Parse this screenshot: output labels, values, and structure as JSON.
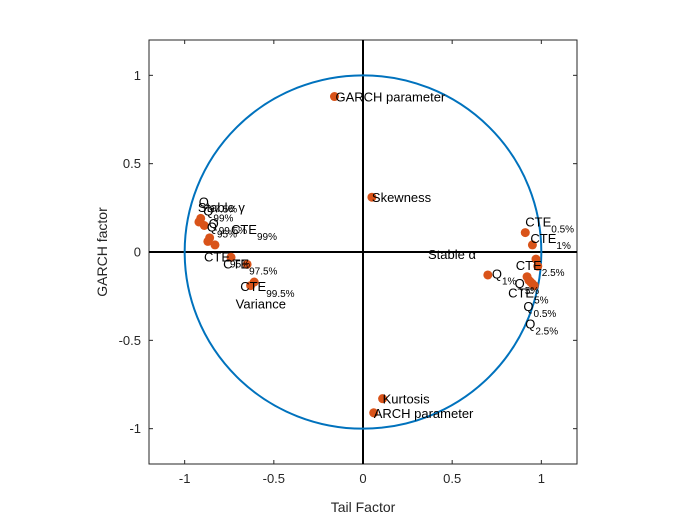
{
  "chart_data": {
    "type": "scatter",
    "title": "",
    "xlabel": "Tail Factor",
    "ylabel": "GARCH factor",
    "xlim": [
      -1.2,
      1.2
    ],
    "ylim": [
      -1.2,
      1.2
    ],
    "xticks": [
      -1,
      -0.5,
      0,
      0.5,
      1
    ],
    "yticks": [
      -1,
      -0.5,
      0,
      0.5,
      1
    ],
    "xtick_labels": [
      "-1",
      "-0.5",
      "0",
      "0.5",
      "1"
    ],
    "ytick_labels": [
      "-1",
      "-0.5",
      "0",
      "0.5",
      "1"
    ],
    "unit_circle": true,
    "zero_axes": true,
    "grid": false,
    "legend": "none",
    "colors": {
      "points": "#d95319",
      "circle": "#0072bd",
      "axes": "#000000",
      "frame": "#262626"
    },
    "points": [
      {
        "x": -0.16,
        "y": 0.88,
        "label": "GARCH parameter",
        "sub": ""
      },
      {
        "x": 0.05,
        "y": 0.31,
        "label": "Skewness",
        "sub": ""
      },
      {
        "x": 0.11,
        "y": -0.83,
        "label": "Kurtosis",
        "sub": ""
      },
      {
        "x": 0.06,
        "y": -0.91,
        "label": "ARCH parameter",
        "sub": ""
      },
      {
        "x": -0.91,
        "y": 0.19,
        "label": "Q",
        "sub": "97.5%"
      },
      {
        "x": -0.92,
        "y": 0.17,
        "label": "Stable γ",
        "sub": ""
      },
      {
        "x": -0.89,
        "y": 0.15,
        "label": "Q",
        "sub": "99%"
      },
      {
        "x": -0.86,
        "y": 0.08,
        "label": "Q",
        "sub": "99.5%"
      },
      {
        "x": -0.87,
        "y": 0.06,
        "label": "Q",
        "sub": "95%"
      },
      {
        "x": -0.83,
        "y": 0.04,
        "label": "CTE",
        "sub": "99%"
      },
      {
        "x": -0.74,
        "y": -0.03,
        "label": "CTE",
        "sub": "95%"
      },
      {
        "x": -0.65,
        "y": -0.07,
        "label": "CTE",
        "sub": "97.5%"
      },
      {
        "x": -0.61,
        "y": -0.17,
        "label": "CTE",
        "sub": "99.5%"
      },
      {
        "x": -0.63,
        "y": -0.19,
        "label": "Variance",
        "sub": ""
      },
      {
        "x": 0.7,
        "y": -0.13,
        "label": "",
        "sub": ""
      },
      {
        "x": 0.91,
        "y": 0.11,
        "label": "CTE",
        "sub": "0.5%"
      },
      {
        "x": 0.95,
        "y": 0.04,
        "label": "CTE",
        "sub": "1%"
      },
      {
        "x": 0.97,
        "y": -0.04,
        "label": "Stable α",
        "sub": ""
      },
      {
        "x": 0.98,
        "y": -0.08,
        "label": "CTE",
        "sub": "2.5%"
      },
      {
        "x": 0.92,
        "y": -0.14,
        "label": "CTE",
        "sub": "5%"
      },
      {
        "x": 0.93,
        "y": -0.16,
        "label": "Q",
        "sub": "1%"
      },
      {
        "x": 0.94,
        "y": -0.17,
        "label": "Q",
        "sub": "5%"
      },
      {
        "x": 0.95,
        "y": -0.18,
        "label": "Q",
        "sub": "0.5%"
      },
      {
        "x": 0.96,
        "y": -0.19,
        "label": "Q",
        "sub": "2.5%"
      }
    ]
  }
}
